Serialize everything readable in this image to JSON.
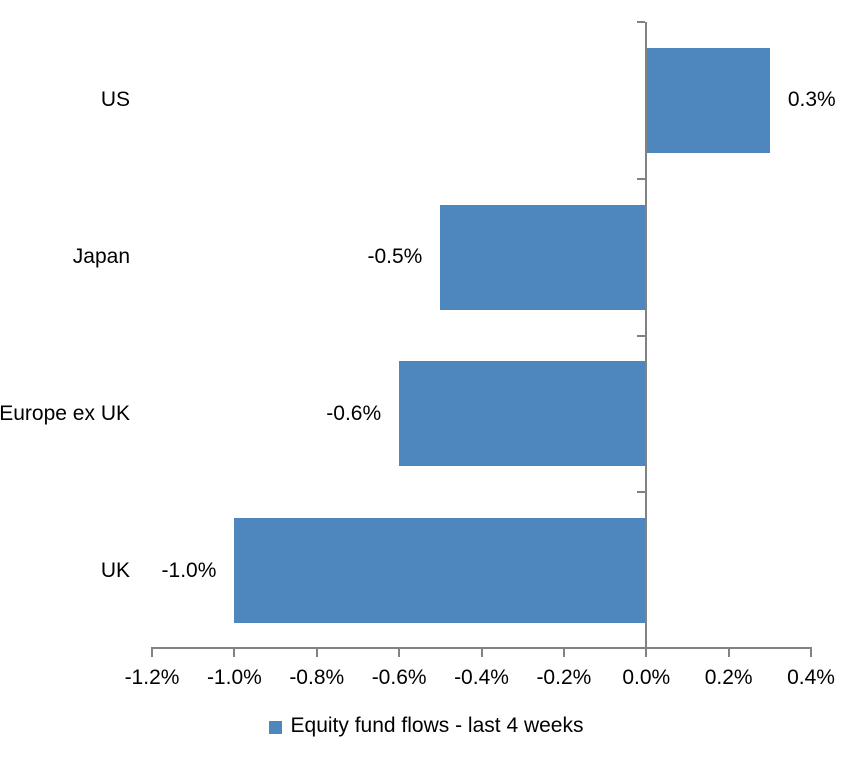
{
  "chart_data": {
    "type": "bar",
    "orientation": "horizontal",
    "title": "",
    "categories": [
      "US",
      "Japan",
      "Europe ex UK",
      "UK"
    ],
    "values": [
      0.3,
      -0.5,
      -0.6,
      -1.0
    ],
    "data_labels": [
      "0.3%",
      "-0.5%",
      "-0.6%",
      "-1.0%"
    ],
    "series_name": "Equity fund flows - last 4 weeks",
    "x_ticks": [
      -1.2,
      -1.0,
      -0.8,
      -0.6,
      -0.4,
      -0.2,
      0.0,
      0.2,
      0.4
    ],
    "x_tick_labels": [
      "-1.2%",
      "-1.0%",
      "-0.8%",
      "-0.6%",
      "-0.4%",
      "-0.2%",
      "0.0%",
      "0.2%",
      "0.4%"
    ],
    "xlim": [
      -1.2,
      0.4
    ],
    "xlabel": "",
    "ylabel": "",
    "grid": false,
    "legend_position": "bottom",
    "bar_color": "#4E87BE",
    "axis_color": "#828282",
    "text_color": "#000000"
  },
  "legend": {
    "label": "Equity fund flows - last 4 weeks"
  }
}
